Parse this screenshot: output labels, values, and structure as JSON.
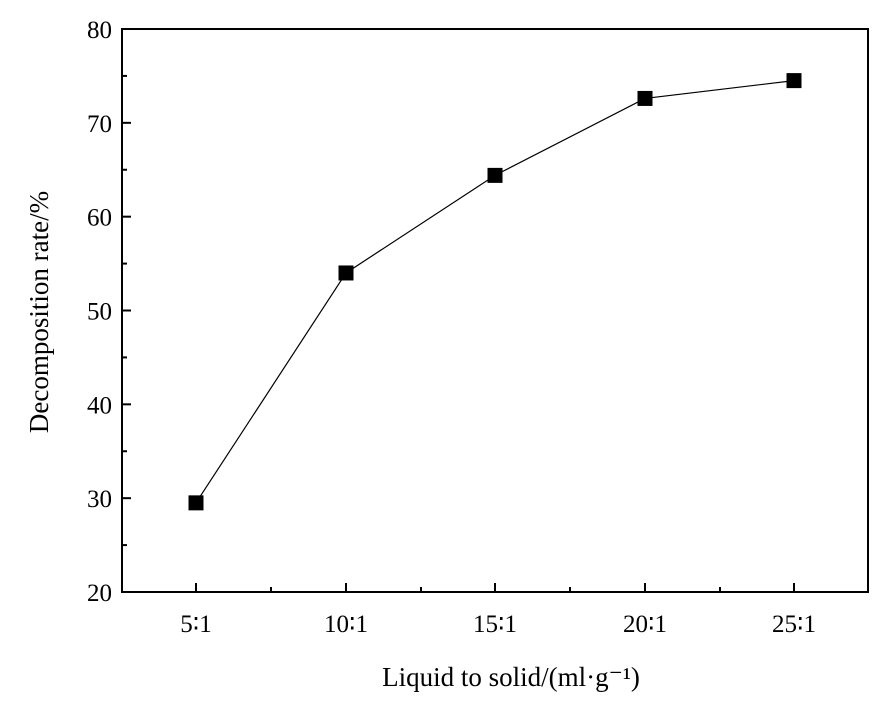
{
  "chart_data": {
    "type": "line",
    "title": "",
    "xlabel": "Liquid to solid/(ml·g⁻¹)",
    "ylabel": "Decomposition rate/%",
    "categories": [
      "5∶1",
      "10∶1",
      "15∶1",
      "20∶1",
      "25∶1"
    ],
    "series": [
      {
        "values": [
          29.5,
          54.0,
          64.4,
          72.6,
          74.5
        ]
      }
    ],
    "ylim": [
      20,
      80
    ],
    "yticks": [
      20,
      30,
      40,
      50,
      60,
      70,
      80
    ],
    "y_tick_labels": [
      "20",
      "30",
      "40",
      "50",
      "60",
      "70",
      "80"
    ],
    "marker": "square",
    "grid": false,
    "legend": "none",
    "colors": {
      "line": "#000000",
      "marker": "#000000",
      "axes": "#000000"
    }
  }
}
